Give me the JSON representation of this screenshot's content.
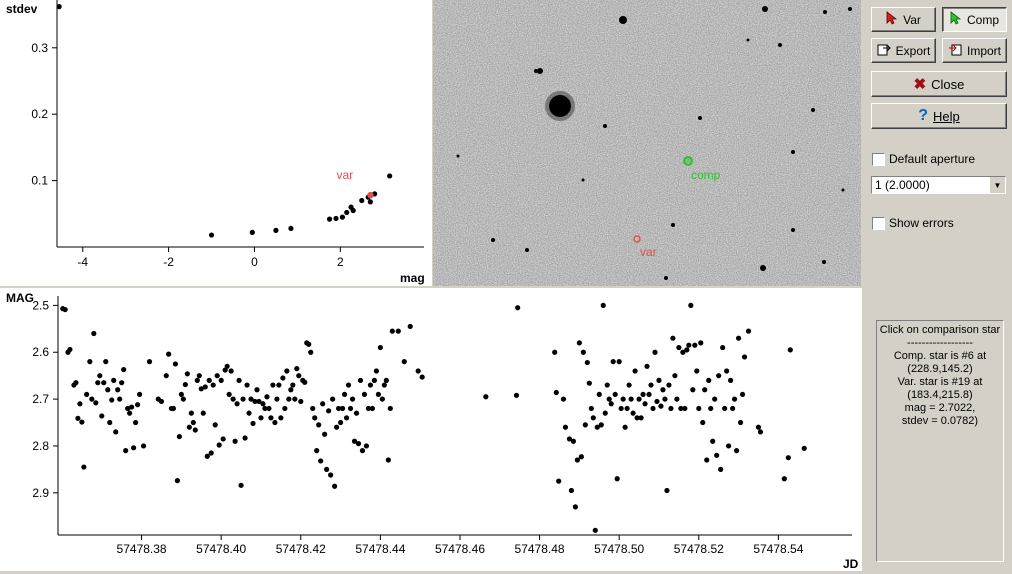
{
  "buttons": {
    "var": "Var",
    "comp": "Comp",
    "export": "Export",
    "import": "Import",
    "close": "Close",
    "help": "Help"
  },
  "icons": {
    "var": "red-arrow-cursor-icon",
    "comp": "green-arrow-cursor-icon",
    "export": "export-icon",
    "import": "import-icon",
    "close": "close-x-icon",
    "help": "question-mark-icon"
  },
  "options": {
    "default_aperture_label": "Default aperture",
    "default_aperture_checked": false,
    "aperture_value": "1 (2.0000)",
    "show_errors_label": "Show errors",
    "show_errors_checked": false
  },
  "info": {
    "lines": [
      "Click on comparison star",
      "------------------",
      "Comp. star is #6 at",
      "(228.9,145.2)",
      "Var. star is #19 at",
      "(183.4,215.8)",
      "mag = 2.7022,",
      "stdev = 0.0782)"
    ]
  },
  "image": {
    "var_label": "var",
    "comp_label": "comp",
    "var_color": "#e05050",
    "comp_color": "#30c030"
  },
  "chart_data": [
    {
      "type": "scatter",
      "ylabel": "stdev",
      "xlabel": "mag",
      "xlim": [
        -4.6,
        3.95
      ],
      "ylim": [
        0.0,
        0.372
      ],
      "xticks": [
        -4,
        -2,
        0,
        2
      ],
      "yticks": [
        0.1,
        0.2,
        0.3
      ],
      "points": [
        [
          -4.55,
          0.362
        ],
        [
          -1.0,
          0.018
        ],
        [
          -0.05,
          0.022
        ],
        [
          0.5,
          0.025
        ],
        [
          0.85,
          0.028
        ],
        [
          1.75,
          0.042
        ],
        [
          1.9,
          0.043
        ],
        [
          2.05,
          0.045
        ],
        [
          2.15,
          0.052
        ],
        [
          2.25,
          0.06
        ],
        [
          2.3,
          0.055
        ],
        [
          2.5,
          0.07
        ],
        [
          2.65,
          0.075
        ],
        [
          2.7,
          0.068
        ],
        [
          2.8,
          0.08
        ],
        [
          3.15,
          0.107
        ]
      ],
      "highlight": {
        "label": "var",
        "x": 2.7022,
        "y": 0.0782,
        "color": "#e05050"
      }
    },
    {
      "type": "scatter",
      "ylabel": "MAG",
      "xlabel": "JD",
      "xlim": [
        57478.359,
        57478.5585
      ],
      "ylim": [
        2.48,
        2.99
      ],
      "inverted_y": true,
      "xticks": [
        "57478.38",
        "57478.40",
        "57478.42",
        "57478.44",
        "57478.46",
        "57478.48",
        "57478.50",
        "57478.52",
        "57478.54"
      ],
      "yticks": [
        "2.5",
        "2.6",
        "2.7",
        "2.8",
        "2.9"
      ],
      "points": [
        [
          57478.3602,
          2.507
        ],
        [
          57478.3608,
          2.509
        ],
        [
          57478.3615,
          2.6
        ],
        [
          57478.362,
          2.594
        ],
        [
          57478.363,
          2.67
        ],
        [
          57478.3635,
          2.665
        ],
        [
          57478.364,
          2.741
        ],
        [
          57478.3645,
          2.71
        ],
        [
          57478.365,
          2.749
        ],
        [
          57478.3655,
          2.845
        ],
        [
          57478.3662,
          2.69
        ],
        [
          57478.367,
          2.62
        ],
        [
          57478.3675,
          2.7
        ],
        [
          57478.368,
          2.56
        ],
        [
          57478.3685,
          2.708
        ],
        [
          57478.369,
          2.665
        ],
        [
          57478.3695,
          2.65
        ],
        [
          57478.37,
          2.736
        ],
        [
          57478.3705,
          2.665
        ],
        [
          57478.371,
          2.62
        ],
        [
          57478.3715,
          2.68
        ],
        [
          57478.372,
          2.75
        ],
        [
          57478.3725,
          2.702
        ],
        [
          57478.373,
          2.66
        ],
        [
          57478.3735,
          2.77
        ],
        [
          57478.374,
          2.68
        ],
        [
          57478.3745,
          2.7
        ],
        [
          57478.375,
          2.665
        ],
        [
          57478.3755,
          2.637
        ],
        [
          57478.376,
          2.81
        ],
        [
          57478.3765,
          2.72
        ],
        [
          57478.377,
          2.73
        ],
        [
          57478.3775,
          2.717
        ],
        [
          57478.378,
          2.804
        ],
        [
          57478.3785,
          2.75
        ],
        [
          57478.379,
          2.712
        ],
        [
          57478.3795,
          2.69
        ],
        [
          57478.3805,
          2.8
        ],
        [
          57478.382,
          2.62
        ],
        [
          57478.3842,
          2.7
        ],
        [
          57478.385,
          2.705
        ],
        [
          57478.3862,
          2.65
        ],
        [
          57478.3868,
          2.604
        ],
        [
          57478.3875,
          2.72
        ],
        [
          57478.388,
          2.72
        ],
        [
          57478.3885,
          2.625
        ],
        [
          57478.389,
          2.874
        ],
        [
          57478.3895,
          2.78
        ],
        [
          57478.39,
          2.69
        ],
        [
          57478.3905,
          2.7
        ],
        [
          57478.391,
          2.669
        ],
        [
          57478.3915,
          2.646
        ],
        [
          57478.392,
          2.76
        ],
        [
          57478.3925,
          2.73
        ],
        [
          57478.393,
          2.75
        ],
        [
          57478.3935,
          2.766
        ],
        [
          57478.394,
          2.66
        ],
        [
          57478.3945,
          2.65
        ],
        [
          57478.395,
          2.678
        ],
        [
          57478.3955,
          2.73
        ],
        [
          57478.396,
          2.674
        ],
        [
          57478.3965,
          2.822
        ],
        [
          57478.397,
          2.66
        ],
        [
          57478.3975,
          2.815
        ],
        [
          57478.398,
          2.67
        ],
        [
          57478.3985,
          2.755
        ],
        [
          57478.399,
          2.65
        ],
        [
          57478.3995,
          2.798
        ],
        [
          57478.4,
          2.66
        ],
        [
          57478.4005,
          2.785
        ],
        [
          57478.401,
          2.638
        ],
        [
          57478.4015,
          2.63
        ],
        [
          57478.402,
          2.69
        ],
        [
          57478.4025,
          2.64
        ],
        [
          57478.403,
          2.7
        ],
        [
          57478.4035,
          2.79
        ],
        [
          57478.404,
          2.71
        ],
        [
          57478.4045,
          2.66
        ],
        [
          57478.405,
          2.884
        ],
        [
          57478.4055,
          2.7
        ],
        [
          57478.406,
          2.783
        ],
        [
          57478.4065,
          2.67
        ],
        [
          57478.407,
          2.73
        ],
        [
          57478.4075,
          2.7
        ],
        [
          57478.408,
          2.752
        ],
        [
          57478.4085,
          2.705
        ],
        [
          57478.409,
          2.68
        ],
        [
          57478.4095,
          2.705
        ],
        [
          57478.41,
          2.74
        ],
        [
          57478.4105,
          2.71
        ],
        [
          57478.411,
          2.72
        ],
        [
          57478.4115,
          2.695
        ],
        [
          57478.412,
          2.72
        ],
        [
          57478.4125,
          2.74
        ],
        [
          57478.413,
          2.67
        ],
        [
          57478.4135,
          2.75
        ],
        [
          57478.414,
          2.7
        ],
        [
          57478.4145,
          2.67
        ],
        [
          57478.415,
          2.74
        ],
        [
          57478.4155,
          2.655
        ],
        [
          57478.416,
          2.72
        ],
        [
          57478.4165,
          2.64
        ],
        [
          57478.417,
          2.7
        ],
        [
          57478.4175,
          2.68
        ],
        [
          57478.418,
          2.67
        ],
        [
          57478.4185,
          2.7
        ],
        [
          57478.419,
          2.635
        ],
        [
          57478.4195,
          2.65
        ],
        [
          57478.42,
          2.705
        ],
        [
          57478.4205,
          2.66
        ],
        [
          57478.421,
          2.664
        ],
        [
          57478.4215,
          2.58
        ],
        [
          57478.422,
          2.583
        ],
        [
          57478.4225,
          2.6
        ],
        [
          57478.423,
          2.72
        ],
        [
          57478.4235,
          2.74
        ],
        [
          57478.424,
          2.81
        ],
        [
          57478.4245,
          2.755
        ],
        [
          57478.425,
          2.832
        ],
        [
          57478.4255,
          2.71
        ],
        [
          57478.426,
          2.775
        ],
        [
          57478.4265,
          2.85
        ],
        [
          57478.427,
          2.725
        ],
        [
          57478.4275,
          2.862
        ],
        [
          57478.428,
          2.7
        ],
        [
          57478.4285,
          2.886
        ],
        [
          57478.429,
          2.76
        ],
        [
          57478.4295,
          2.72
        ],
        [
          57478.43,
          2.75
        ],
        [
          57478.4305,
          2.72
        ],
        [
          57478.431,
          2.69
        ],
        [
          57478.4315,
          2.74
        ],
        [
          57478.432,
          2.67
        ],
        [
          57478.4325,
          2.72
        ],
        [
          57478.433,
          2.7
        ],
        [
          57478.4335,
          2.79
        ],
        [
          57478.434,
          2.73
        ],
        [
          57478.4345,
          2.795
        ],
        [
          57478.435,
          2.66
        ],
        [
          57478.4355,
          2.81
        ],
        [
          57478.436,
          2.69
        ],
        [
          57478.4365,
          2.8
        ],
        [
          57478.437,
          2.72
        ],
        [
          57478.4375,
          2.67
        ],
        [
          57478.438,
          2.72
        ],
        [
          57478.4385,
          2.66
        ],
        [
          57478.439,
          2.64
        ],
        [
          57478.4395,
          2.69
        ],
        [
          57478.44,
          2.59
        ],
        [
          57478.4405,
          2.7
        ],
        [
          57478.441,
          2.67
        ],
        [
          57478.4415,
          2.66
        ],
        [
          57478.442,
          2.83
        ],
        [
          57478.4425,
          2.72
        ],
        [
          57478.443,
          2.555
        ],
        [
          57478.4445,
          2.555
        ],
        [
          57478.446,
          2.62
        ],
        [
          57478.4475,
          2.545
        ],
        [
          57478.4495,
          2.64
        ],
        [
          57478.4505,
          2.653
        ],
        [
          57478.4665,
          2.695
        ],
        [
          57478.4745,
          2.505
        ],
        [
          57478.4742,
          2.692
        ],
        [
          57478.4838,
          2.6
        ],
        [
          57478.4842,
          2.686
        ],
        [
          57478.4848,
          2.875
        ],
        [
          57478.486,
          2.7
        ],
        [
          57478.4865,
          2.76
        ],
        [
          57478.4875,
          2.785
        ],
        [
          57478.488,
          2.895
        ],
        [
          57478.4885,
          2.79
        ],
        [
          57478.489,
          2.93
        ],
        [
          57478.4895,
          2.83
        ],
        [
          57478.49,
          2.58
        ],
        [
          57478.4905,
          2.823
        ],
        [
          57478.491,
          2.6
        ],
        [
          57478.4915,
          2.755
        ],
        [
          57478.492,
          2.622
        ],
        [
          57478.4925,
          2.666
        ],
        [
          57478.493,
          2.72
        ],
        [
          57478.4935,
          2.74
        ],
        [
          57478.494,
          2.98
        ],
        [
          57478.4945,
          2.76
        ],
        [
          57478.495,
          2.69
        ],
        [
          57478.4955,
          2.755
        ],
        [
          57478.496,
          2.5
        ],
        [
          57478.4965,
          2.73
        ],
        [
          57478.497,
          2.67
        ],
        [
          57478.4975,
          2.7
        ],
        [
          57478.498,
          2.71
        ],
        [
          57478.4985,
          2.62
        ],
        [
          57478.499,
          2.69
        ],
        [
          57478.4995,
          2.87
        ],
        [
          57478.5,
          2.62
        ],
        [
          57478.5005,
          2.72
        ],
        [
          57478.501,
          2.7
        ],
        [
          57478.5015,
          2.76
        ],
        [
          57478.502,
          2.72
        ],
        [
          57478.5025,
          2.67
        ],
        [
          57478.503,
          2.7
        ],
        [
          57478.5035,
          2.73
        ],
        [
          57478.504,
          2.64
        ],
        [
          57478.5045,
          2.74
        ],
        [
          57478.505,
          2.7
        ],
        [
          57478.5055,
          2.74
        ],
        [
          57478.506,
          2.69
        ],
        [
          57478.5065,
          2.71
        ],
        [
          57478.507,
          2.63
        ],
        [
          57478.5075,
          2.69
        ],
        [
          57478.508,
          2.67
        ],
        [
          57478.5085,
          2.72
        ],
        [
          57478.509,
          2.6
        ],
        [
          57478.5095,
          2.705
        ],
        [
          57478.51,
          2.66
        ],
        [
          57478.5105,
          2.715
        ],
        [
          57478.511,
          2.68
        ],
        [
          57478.5115,
          2.7
        ],
        [
          57478.512,
          2.895
        ],
        [
          57478.5125,
          2.67
        ],
        [
          57478.513,
          2.72
        ],
        [
          57478.5135,
          2.57
        ],
        [
          57478.514,
          2.65
        ],
        [
          57478.5145,
          2.7
        ],
        [
          57478.515,
          2.59
        ],
        [
          57478.5155,
          2.72
        ],
        [
          57478.516,
          2.6
        ],
        [
          57478.5165,
          2.72
        ],
        [
          57478.517,
          2.595
        ],
        [
          57478.5175,
          2.585
        ],
        [
          57478.518,
          2.5
        ],
        [
          57478.5185,
          2.68
        ],
        [
          57478.519,
          2.585
        ],
        [
          57478.5195,
          2.64
        ],
        [
          57478.52,
          2.72
        ],
        [
          57478.5205,
          2.58
        ],
        [
          57478.521,
          2.75
        ],
        [
          57478.5215,
          2.68
        ],
        [
          57478.522,
          2.83
        ],
        [
          57478.5225,
          2.66
        ],
        [
          57478.523,
          2.72
        ],
        [
          57478.5235,
          2.79
        ],
        [
          57478.524,
          2.7
        ],
        [
          57478.5245,
          2.82
        ],
        [
          57478.525,
          2.65
        ],
        [
          57478.5255,
          2.85
        ],
        [
          57478.526,
          2.59
        ],
        [
          57478.5265,
          2.72
        ],
        [
          57478.527,
          2.64
        ],
        [
          57478.5275,
          2.8
        ],
        [
          57478.528,
          2.66
        ],
        [
          57478.5285,
          2.72
        ],
        [
          57478.529,
          2.7
        ],
        [
          57478.5295,
          2.81
        ],
        [
          57478.53,
          2.57
        ],
        [
          57478.5305,
          2.75
        ],
        [
          57478.531,
          2.69
        ],
        [
          57478.5315,
          2.61
        ],
        [
          57478.5325,
          2.555
        ],
        [
          57478.535,
          2.76
        ],
        [
          57478.5355,
          2.77
        ],
        [
          57478.5415,
          2.87
        ],
        [
          57478.5425,
          2.825
        ],
        [
          57478.543,
          2.595
        ],
        [
          57478.5465,
          2.805
        ]
      ]
    }
  ]
}
